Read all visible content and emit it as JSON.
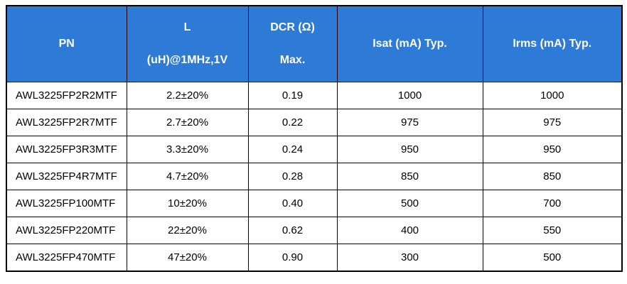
{
  "colors": {
    "header_bg": "#2d7ad7",
    "header_text": "#ffffff",
    "body_text": "#000000",
    "border": "#000000",
    "page_bg": "#ffffff"
  },
  "header": {
    "pn": "PN",
    "l_line1": "L",
    "l_line2": "(uH)@1MHz,1V",
    "dcr_line1": "DCR (Ω)",
    "dcr_line2": "Max.",
    "isat": "Isat (mA) Typ.",
    "irms": "Irms (mA) Typ."
  },
  "rows": [
    [
      "AWL3225FP2R2MTF",
      "2.2±20%",
      "0.19",
      "1000",
      "1000"
    ],
    [
      "AWL3225FP2R7MTF",
      "2.7±20%",
      "0.22",
      "975",
      "975"
    ],
    [
      "AWL3225FP3R3MTF",
      "3.3±20%",
      "0.24",
      "950",
      "950"
    ],
    [
      "AWL3225FP4R7MTF",
      "4.7±20%",
      "0.28",
      "850",
      "850"
    ],
    [
      "AWL3225FP100MTF",
      "10±20%",
      "0.40",
      "500",
      "700"
    ],
    [
      "AWL3225FP220MTF",
      "22±20%",
      "0.62",
      "400",
      "550"
    ],
    [
      "AWL3225FP470MTF",
      "47±20%",
      "0.90",
      "300",
      "500"
    ]
  ]
}
